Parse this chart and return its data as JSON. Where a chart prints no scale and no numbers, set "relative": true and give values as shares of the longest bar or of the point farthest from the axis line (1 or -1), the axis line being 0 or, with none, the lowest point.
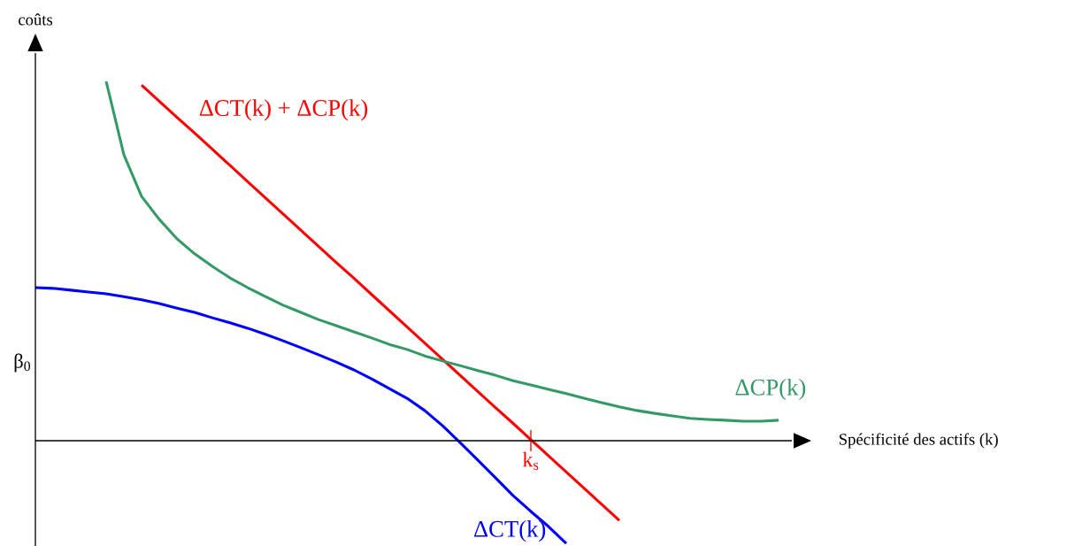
{
  "chart_data": {
    "type": "line",
    "relative": true,
    "xlabel": "Spécificité des actifs (k)",
    "ylabel": "coûts",
    "categories": [
      null,
      null,
      null,
      null,
      null,
      null,
      null,
      null,
      null,
      null,
      null,
      null,
      null,
      null,
      null,
      null,
      null,
      null,
      null,
      null,
      null,
      null,
      null,
      null,
      null,
      null,
      null,
      null,
      null,
      null,
      null,
      null,
      null,
      null,
      null,
      null,
      null,
      null,
      null,
      null,
      null,
      null,
      null
    ],
    "series": [
      {
        "name": "ΔCT(k) + ΔCP(k)",
        "color": "#ff0000",
        "values": [
          null,
          null,
          null,
          null,
          null,
          null,
          0.99,
          0.945,
          0.9,
          0.856,
          0.811,
          0.766,
          0.721,
          0.676,
          0.631,
          0.586,
          0.541,
          0.496,
          0.452,
          0.407,
          0.362,
          0.317,
          0.272,
          0.227,
          0.182,
          0.137,
          0.092,
          0.048,
          0.003,
          -0.042,
          -0.087,
          -0.132,
          -0.177,
          -0.222,
          null,
          null,
          null,
          null,
          null,
          null,
          null,
          null,
          null
        ]
      },
      {
        "name": "ΔCP(k)",
        "color": "#339966",
        "values": [
          null,
          null,
          null,
          null,
          1.0,
          0.796,
          0.68,
          0.616,
          0.562,
          0.52,
          0.485,
          0.453,
          0.426,
          0.401,
          0.377,
          0.357,
          0.337,
          0.32,
          0.303,
          0.286,
          0.268,
          0.254,
          0.236,
          0.222,
          0.209,
          0.195,
          0.182,
          0.167,
          0.155,
          0.143,
          0.131,
          0.118,
          0.106,
          0.094,
          0.084,
          0.076,
          0.069,
          0.062,
          0.059,
          0.057,
          0.054,
          0.054,
          0.057
        ]
      },
      {
        "name": "ΔCT(k)",
        "color": "#0000ff",
        "values": [
          0.426,
          0.424,
          0.419,
          0.414,
          0.409,
          0.401,
          0.392,
          0.382,
          0.369,
          0.357,
          0.342,
          0.328,
          0.313,
          0.296,
          0.278,
          0.259,
          0.239,
          0.219,
          0.197,
          0.172,
          0.145,
          0.118,
          0.084,
          0.042,
          -0.005,
          -0.054,
          -0.103,
          -0.153,
          -0.197,
          -0.239,
          -0.286,
          null,
          null,
          null,
          null,
          null,
          null,
          null,
          null,
          null,
          null,
          null,
          null
        ]
      }
    ],
    "annotations": [
      "β$_{0}$",
      "k$_{s}$"
    ]
  }
}
